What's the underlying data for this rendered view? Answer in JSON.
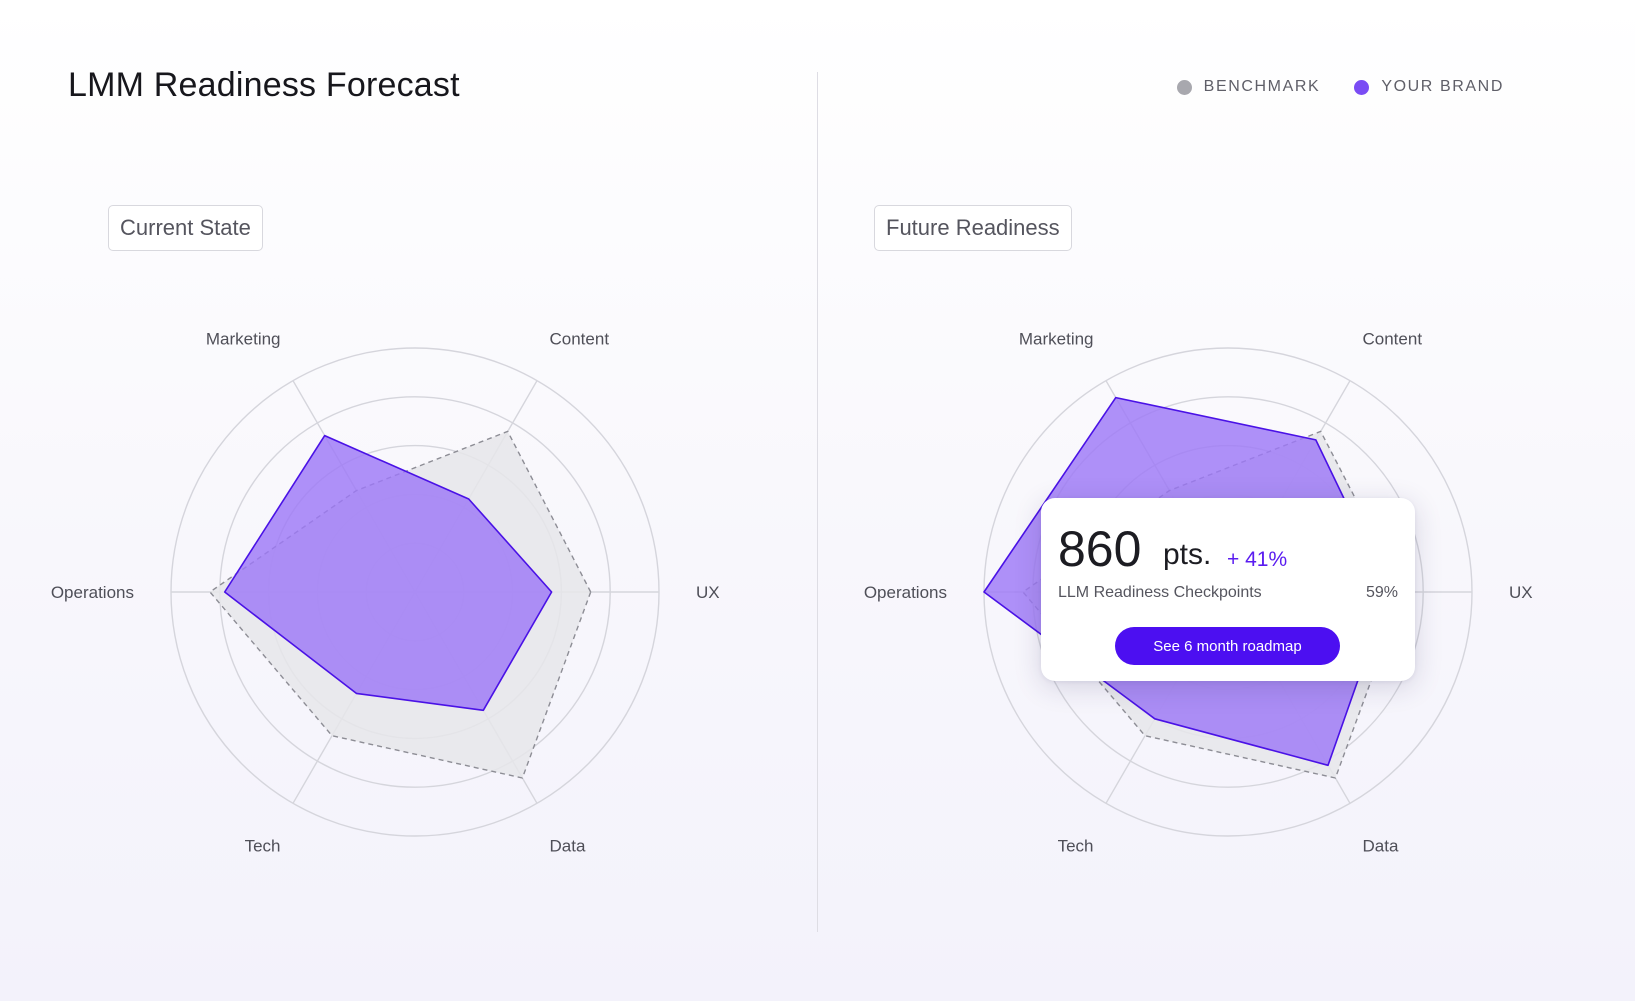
{
  "page": {
    "title": "LMM Readiness Forecast"
  },
  "legend": [
    {
      "label": "BENCHMARK",
      "color": "#a8a8ae"
    },
    {
      "label": "YOUR BRAND",
      "color": "#7a4cf4"
    }
  ],
  "colors": {
    "brand_fill": "#9d79f7",
    "brand_stroke": "#4a12e6",
    "benchmark_fill": "#e6e6ea",
    "benchmark_stroke": "#8d8d95",
    "grid": "#d5d5dc"
  },
  "panels": [
    {
      "tag": "Current State"
    },
    {
      "tag": "Future Readiness"
    }
  ],
  "tooltip": {
    "value": "860",
    "unit": "pts.",
    "delta": "+ 41%",
    "label": "LLM Readiness Checkpoints",
    "percent": "59%",
    "button_label": "See 6 month roadmap"
  },
  "chart_data": [
    {
      "type": "radar",
      "title": "Current State",
      "axes": [
        "UX",
        "Content",
        "Marketing",
        "Operations",
        "Tech",
        "Data"
      ],
      "range": [
        0,
        5
      ],
      "rings": 5,
      "series": [
        {
          "name": "BENCHMARK",
          "values": [
            3.6,
            3.8,
            2.4,
            4.2,
            3.4,
            4.4
          ]
        },
        {
          "name": "YOUR BRAND",
          "values": [
            2.8,
            2.2,
            3.7,
            3.9,
            2.4,
            2.8
          ]
        }
      ]
    },
    {
      "type": "radar",
      "title": "Future Readiness",
      "axes": [
        "UX",
        "Content",
        "Marketing",
        "Operations",
        "Tech",
        "Data"
      ],
      "range": [
        0,
        5
      ],
      "rings": 5,
      "series": [
        {
          "name": "BENCHMARK",
          "values": [
            3.6,
            3.8,
            2.4,
            4.2,
            3.4,
            4.4
          ]
        },
        {
          "name": "YOUR BRAND",
          "values": [
            3.3,
            3.6,
            4.6,
            5.0,
            3.0,
            4.1
          ]
        }
      ]
    }
  ]
}
